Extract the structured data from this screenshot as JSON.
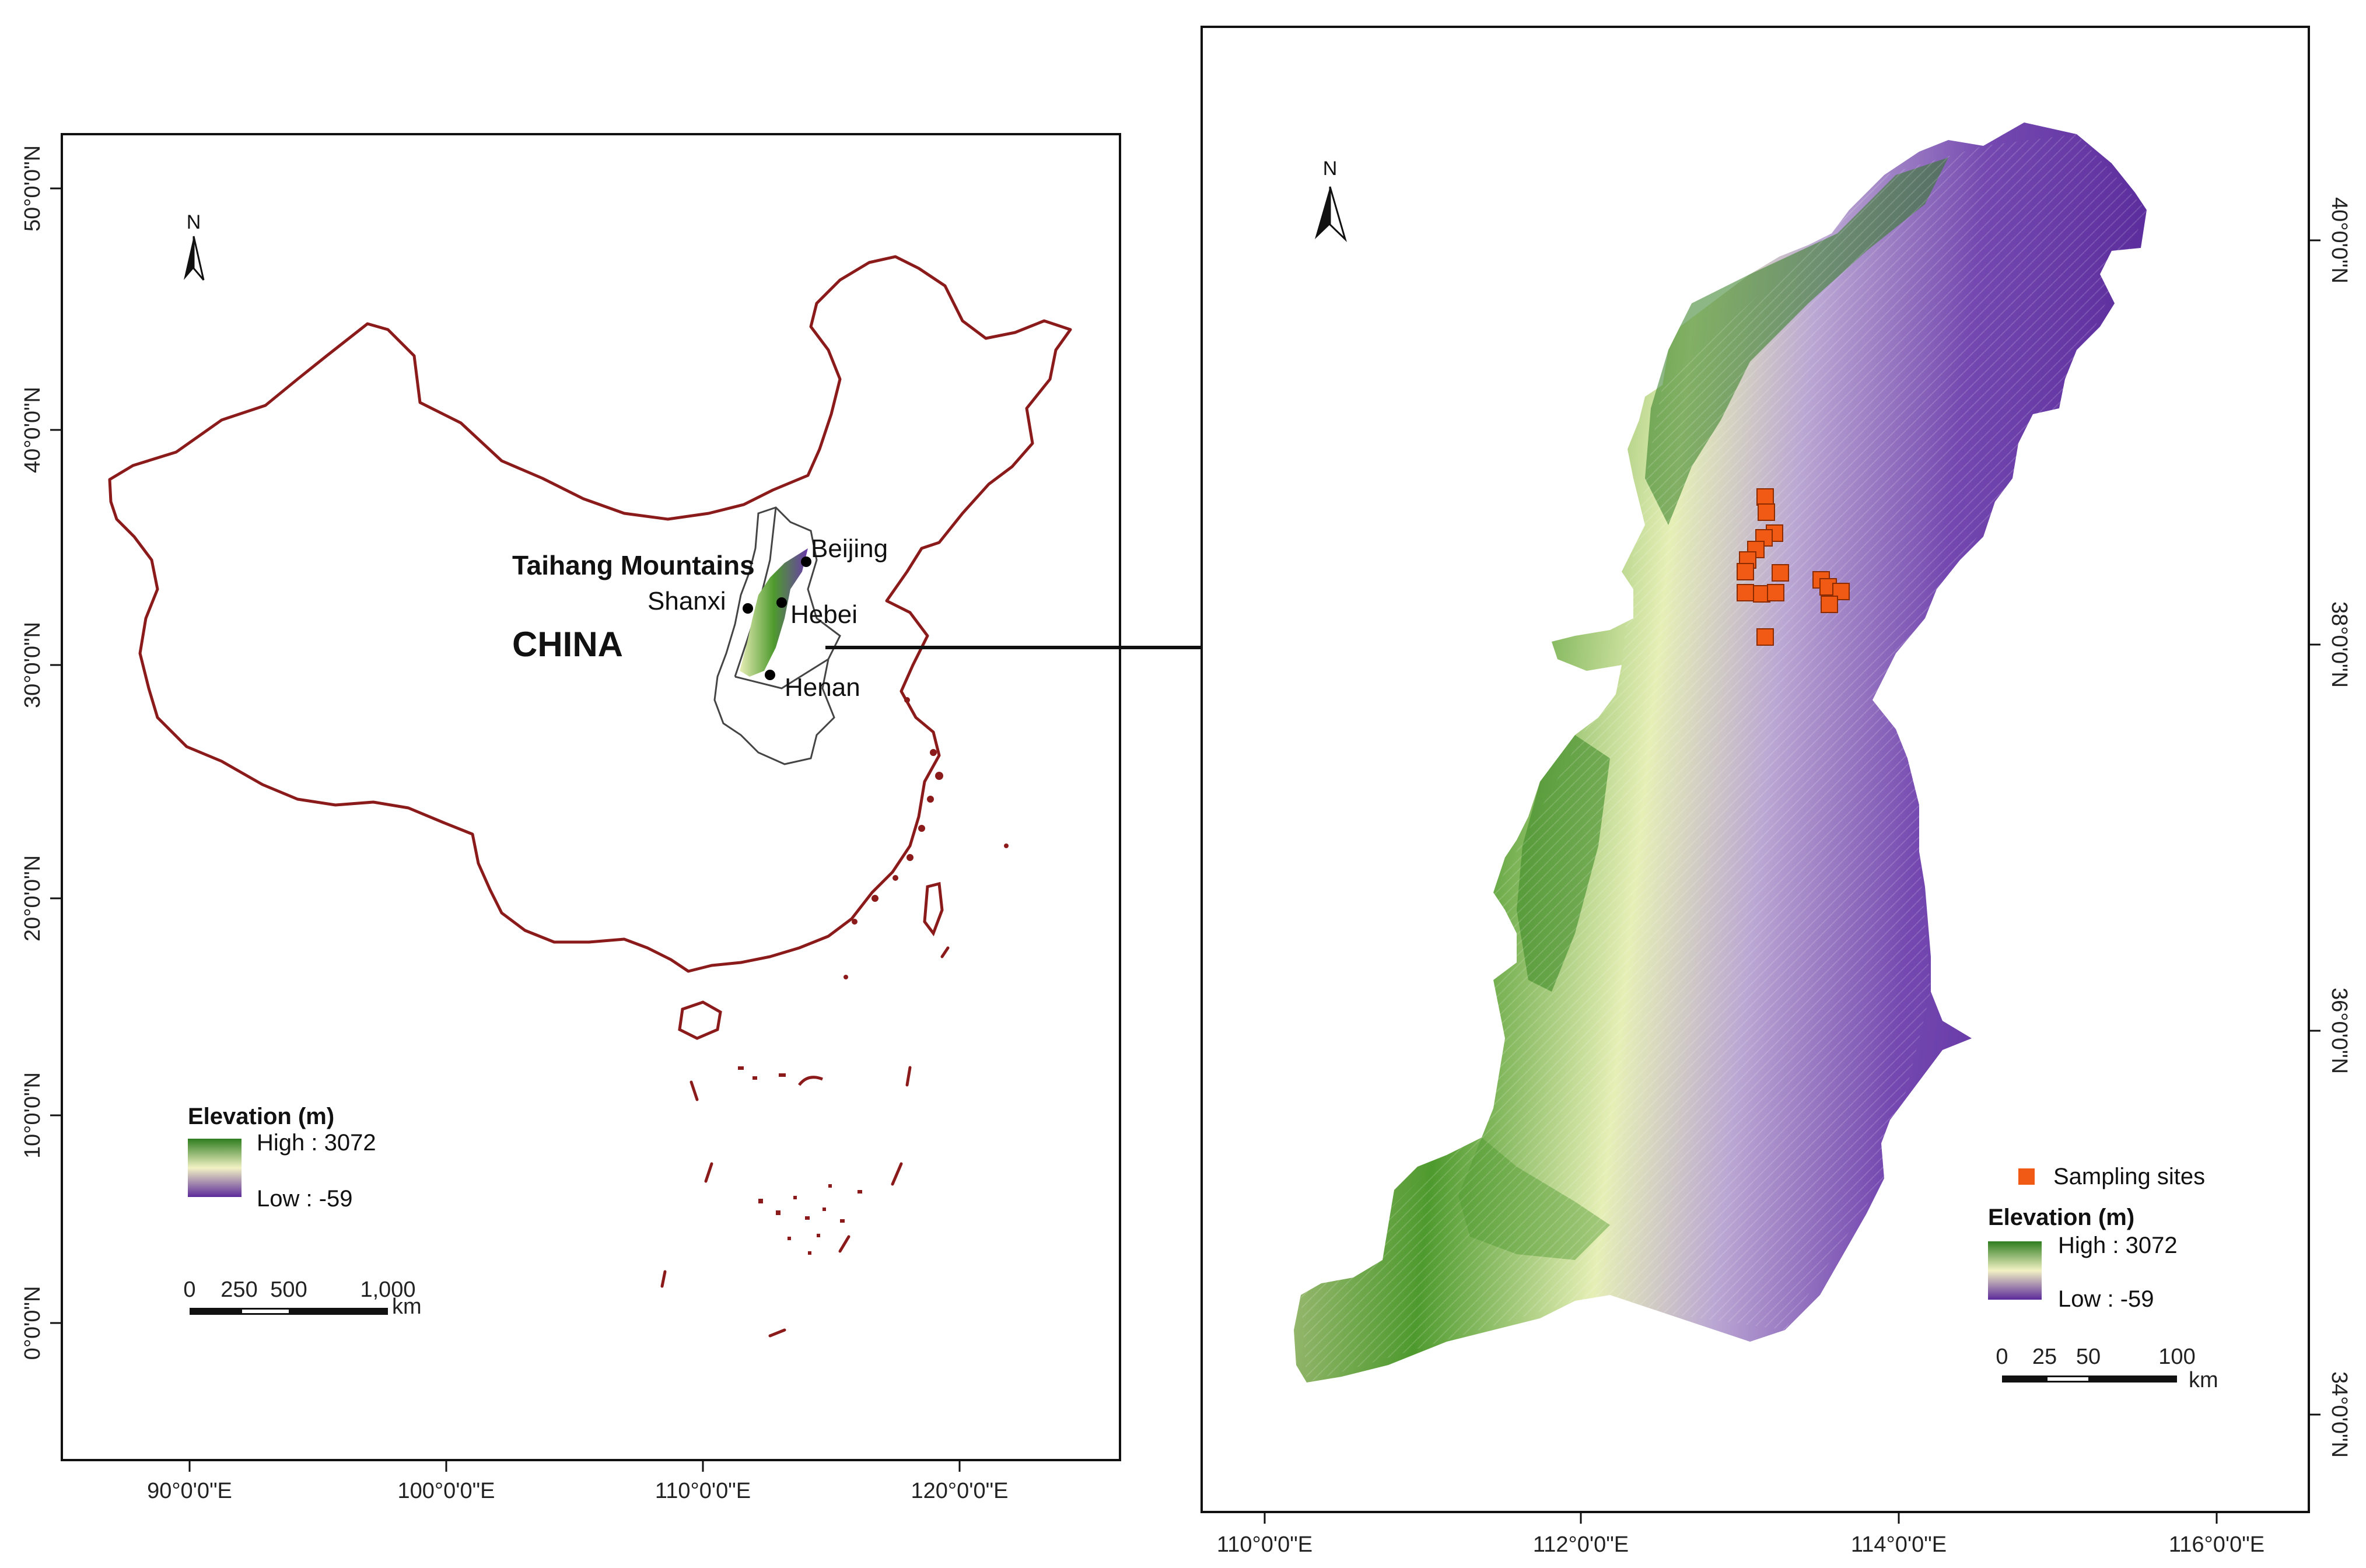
{
  "left_map": {
    "north_label": "N",
    "country_label": "CHINA",
    "region_label": "Taihang Mountains",
    "places": [
      "Beijing",
      "Shanxi",
      "Hebei",
      "Henan"
    ],
    "lat_ticks": [
      "0°0'0\"N",
      "10°0'0\"N",
      "20°0'0\"N",
      "30°0'0\"N",
      "40°0'0\"N",
      "50°0'0\"N"
    ],
    "lon_ticks": [
      "90°0'0\"E",
      "100°0'0\"E",
      "110°0'0\"E",
      "120°0'0\"E"
    ],
    "legend": {
      "title": "Elevation (m)",
      "high": "High : 3072",
      "low": "Low : -59"
    },
    "scalebar": {
      "labels": [
        "0",
        "250",
        "500",
        "1,000"
      ],
      "unit": "km"
    }
  },
  "right_map": {
    "north_label": "N",
    "lat_ticks": [
      "34°0'0\"N",
      "36°0'0\"N",
      "38°0'0\"N",
      "40°0'0\"N"
    ],
    "lon_ticks": [
      "110°0'0\"E",
      "112°0'0\"E",
      "114°0'0\"E",
      "116°0'0\"E"
    ],
    "sites_label": "Sampling sites",
    "legend": {
      "title": "Elevation (m)",
      "high": "High : 3072",
      "low": "Low : -59"
    },
    "scalebar": {
      "labels": [
        "0",
        "25",
        "50",
        "100"
      ],
      "unit": "km"
    }
  },
  "colors": {
    "border": "#8b1a1a",
    "high": "#2e7d1f",
    "mid": "#f2f2c4",
    "low": "#5b2a9a",
    "sites": "#f05a14"
  }
}
